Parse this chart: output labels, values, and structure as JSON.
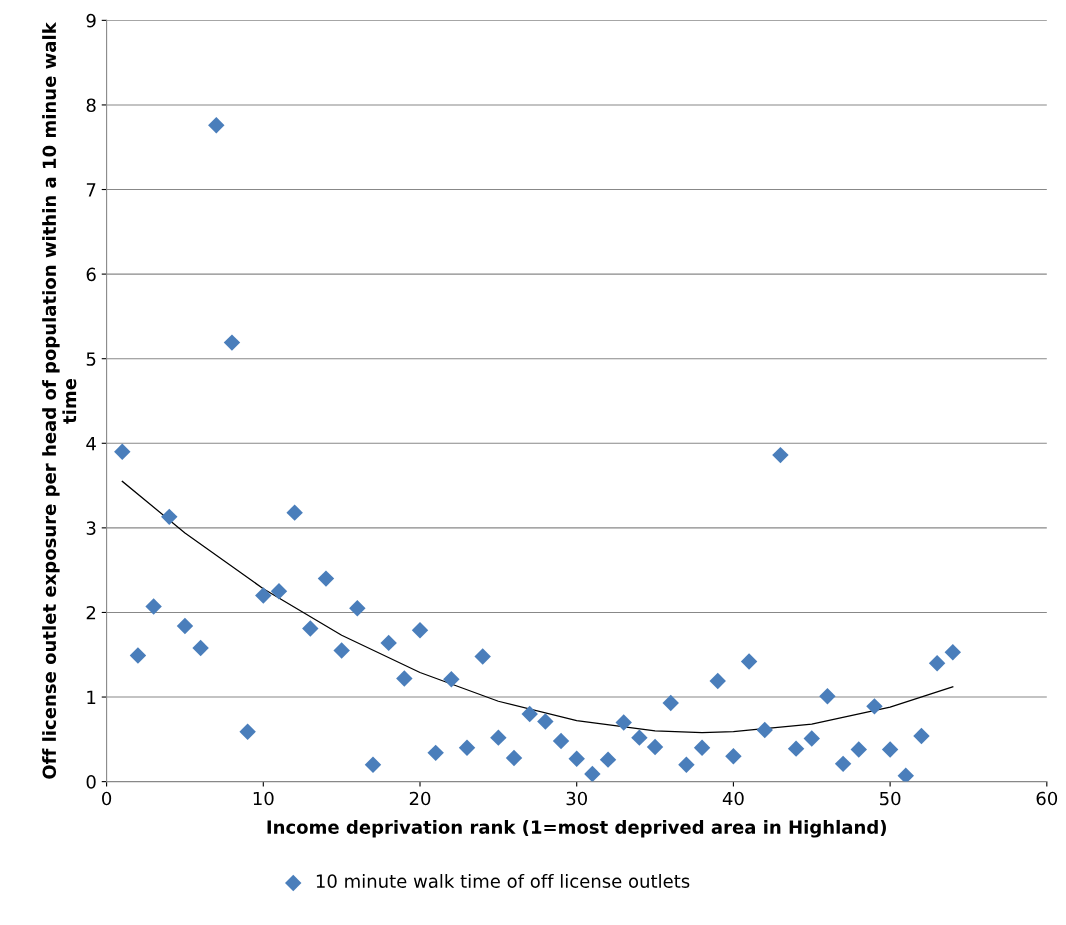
{
  "chart_data": {
    "type": "scatter",
    "xlabel": "Income deprivation rank (1=most deprived area in Highland)",
    "ylabel": "Off license outlet exposure per head of population within a 10 minue walk time",
    "xlim": [
      0,
      60
    ],
    "xticks": [
      0,
      10,
      20,
      30,
      40,
      50,
      60
    ],
    "ylim": [
      0,
      9
    ],
    "yticks": [
      0,
      1,
      2,
      3,
      4,
      5,
      6,
      7,
      8,
      9
    ],
    "grid": "y",
    "legend": "bottom",
    "marker": "diamond",
    "series": [
      {
        "name": "10 minute walk time of off license outlets",
        "color": "#4a7ebb",
        "x": [
          1,
          2,
          3,
          4,
          5,
          6,
          7,
          8,
          9,
          10,
          11,
          12,
          13,
          14,
          15,
          16,
          17,
          18,
          19,
          20,
          21,
          22,
          23,
          24,
          25,
          26,
          27,
          28,
          29,
          30,
          31,
          32,
          33,
          34,
          35,
          36,
          37,
          38,
          39,
          40,
          41,
          42,
          43,
          44,
          45,
          46,
          47,
          48,
          49,
          50,
          51,
          52,
          53,
          54
        ],
        "values": [
          3.9,
          1.49,
          2.07,
          3.13,
          1.84,
          1.58,
          7.76,
          5.19,
          0.59,
          2.2,
          2.25,
          3.18,
          1.81,
          2.4,
          1.55,
          2.05,
          0.2,
          1.64,
          1.22,
          1.79,
          0.34,
          1.21,
          0.4,
          1.48,
          0.52,
          0.28,
          0.8,
          0.71,
          0.48,
          0.27,
          0.09,
          0.26,
          0.7,
          0.52,
          0.41,
          0.93,
          0.2,
          0.4,
          1.19,
          0.3,
          1.42,
          0.61,
          3.86,
          0.39,
          0.51,
          1.01,
          0.21,
          0.38,
          0.89,
          0.38,
          0.07,
          0.54,
          1.4,
          1.53
        ]
      },
      {
        "type": "line",
        "marker": "none",
        "color": "#000000",
        "x": [
          1,
          5,
          10,
          15,
          20,
          25,
          30,
          35,
          38,
          40,
          45,
          50,
          54
        ],
        "values": [
          3.55,
          2.94,
          2.28,
          1.73,
          1.29,
          0.95,
          0.72,
          0.6,
          0.58,
          0.59,
          0.68,
          0.88,
          1.12
        ]
      }
    ]
  }
}
